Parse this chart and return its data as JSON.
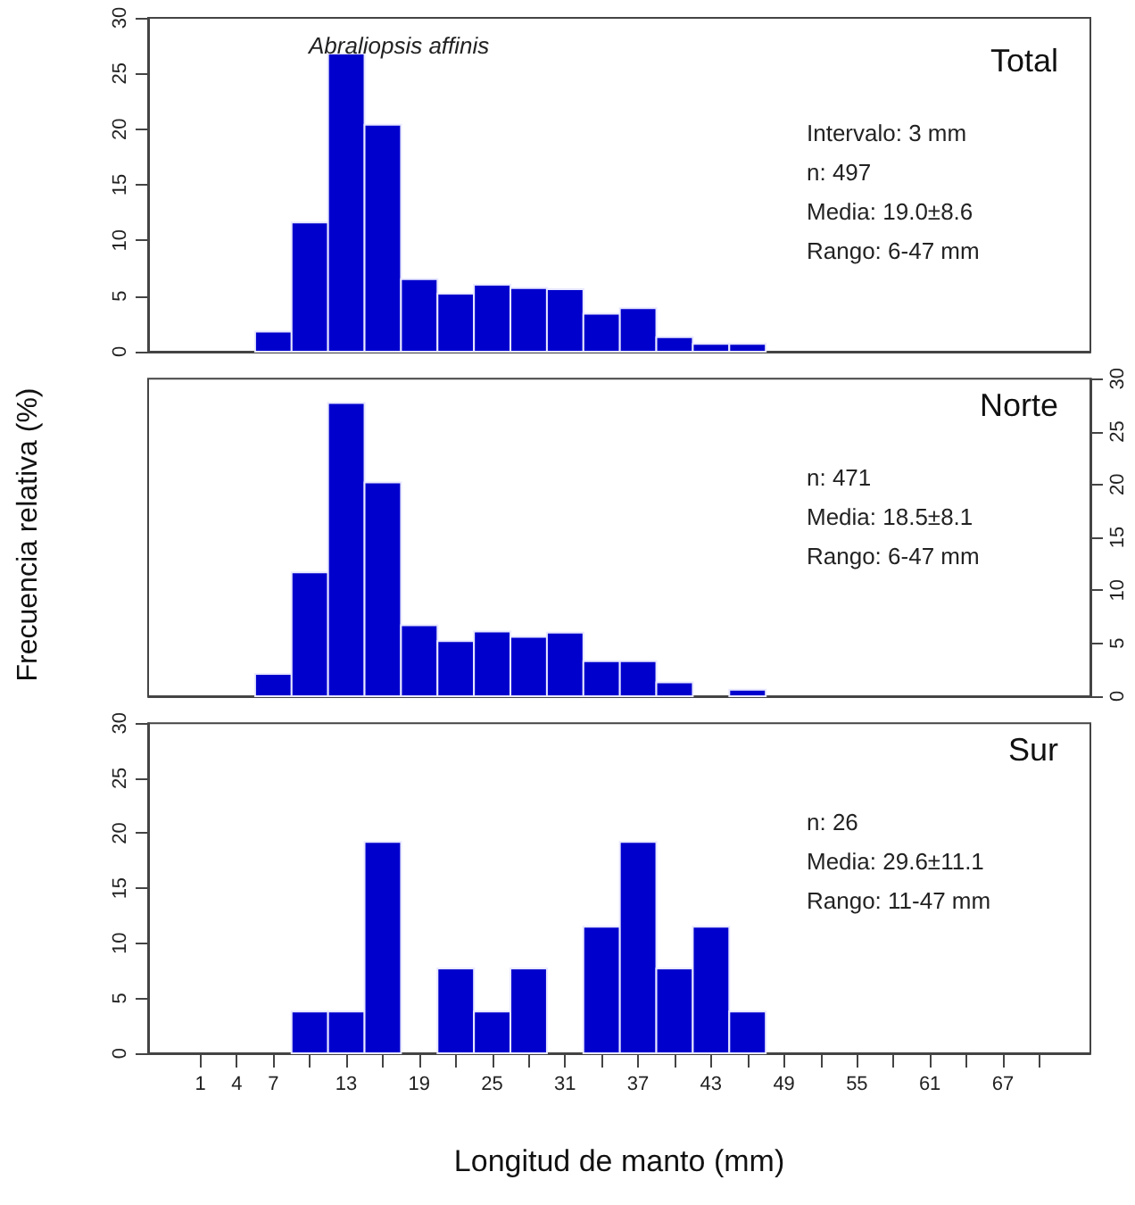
{
  "chart_data": [
    {
      "type": "histogram",
      "title": "Total",
      "subtitle": "Abraliopsis affinis",
      "annotations": [
        "Intervalo: 3 mm",
        "n: 497",
        "Media: 19.0±8.6",
        "Rango: 6-47 mm"
      ],
      "bins": [
        5.5,
        8.5,
        11.5,
        14.5,
        17.5,
        20.5,
        23.5,
        26.5,
        29.5,
        32.5,
        35.5,
        38.5,
        41.5,
        44.5,
        47.5
      ],
      "values": [
        1.8,
        11.6,
        26.8,
        20.4,
        6.5,
        5.2,
        6.0,
        5.7,
        5.6,
        3.4,
        3.9,
        1.3,
        0.7,
        0.7
      ],
      "color": "#0000cd",
      "xlim": [
        -3.3,
        74.2
      ],
      "ylim": [
        0,
        30
      ],
      "yticks": [
        0,
        5,
        10,
        15,
        20,
        25,
        30
      ],
      "tick_labels": "y"
    },
    {
      "type": "histogram",
      "title": "Norte",
      "ylabel": "Frecuencia relativa (%)",
      "annotations": [
        "n: 471",
        "Media: 18.5±8.1",
        "Rango: 6-47 mm"
      ],
      "bins": [
        5.5,
        8.5,
        11.5,
        14.5,
        17.5,
        20.5,
        23.5,
        26.5,
        29.5,
        32.5,
        35.5,
        38.5,
        41.5,
        44.5,
        47.5
      ],
      "series": [
        {
          "color": "#0000cd",
          "axis": "y2",
          "values": [
            2.1,
            11.7,
            27.7,
            20.2,
            6.7,
            5.2,
            6.1,
            5.6,
            6.0,
            3.3,
            3.3,
            1.3,
            0,
            0.6
          ]
        }
      ],
      "xlim": [
        -3.3,
        74.2
      ],
      "y2lim": [
        0,
        30
      ],
      "y2ticks": [
        0,
        5,
        10,
        15,
        20,
        25,
        30
      ],
      "tick_labels": "y"
    },
    {
      "type": "histogram",
      "title": "Sur",
      "xlabel": "Longitud de manto (mm)",
      "annotations": [
        "n: 26",
        "Media: 29.6±11.1",
        "Rango: 11-47 mm"
      ],
      "bins": [
        5.5,
        8.5,
        11.5,
        14.5,
        17.5,
        20.5,
        23.5,
        26.5,
        29.5,
        32.5,
        35.5,
        38.5,
        41.5,
        44.5,
        47.5
      ],
      "values": [
        0,
        3.8,
        3.8,
        19.2,
        0,
        7.7,
        3.8,
        7.7,
        0,
        11.5,
        19.2,
        7.7,
        11.5,
        3.8
      ],
      "color": "#0000cd",
      "xlim": [
        -3.3,
        74.2
      ],
      "ylim": [
        0,
        30
      ],
      "yticks": [
        0,
        5,
        10,
        15,
        20,
        25,
        30
      ],
      "xticks": [
        1,
        4,
        7,
        {
          "value": 10,
          "label": null
        },
        13,
        {
          "value": 16,
          "label": null
        },
        19,
        {
          "value": 22,
          "label": null
        },
        25,
        {
          "value": 28,
          "label": null
        },
        31,
        {
          "value": 34,
          "label": null
        },
        37,
        {
          "value": 40,
          "label": null
        },
        43,
        {
          "value": 46,
          "label": null
        },
        49,
        {
          "value": 52,
          "label": null
        },
        55,
        {
          "value": 58,
          "label": null
        },
        61,
        {
          "value": 64,
          "label": null
        },
        67,
        {
          "value": 70,
          "label": null
        }
      ]
    }
  ]
}
